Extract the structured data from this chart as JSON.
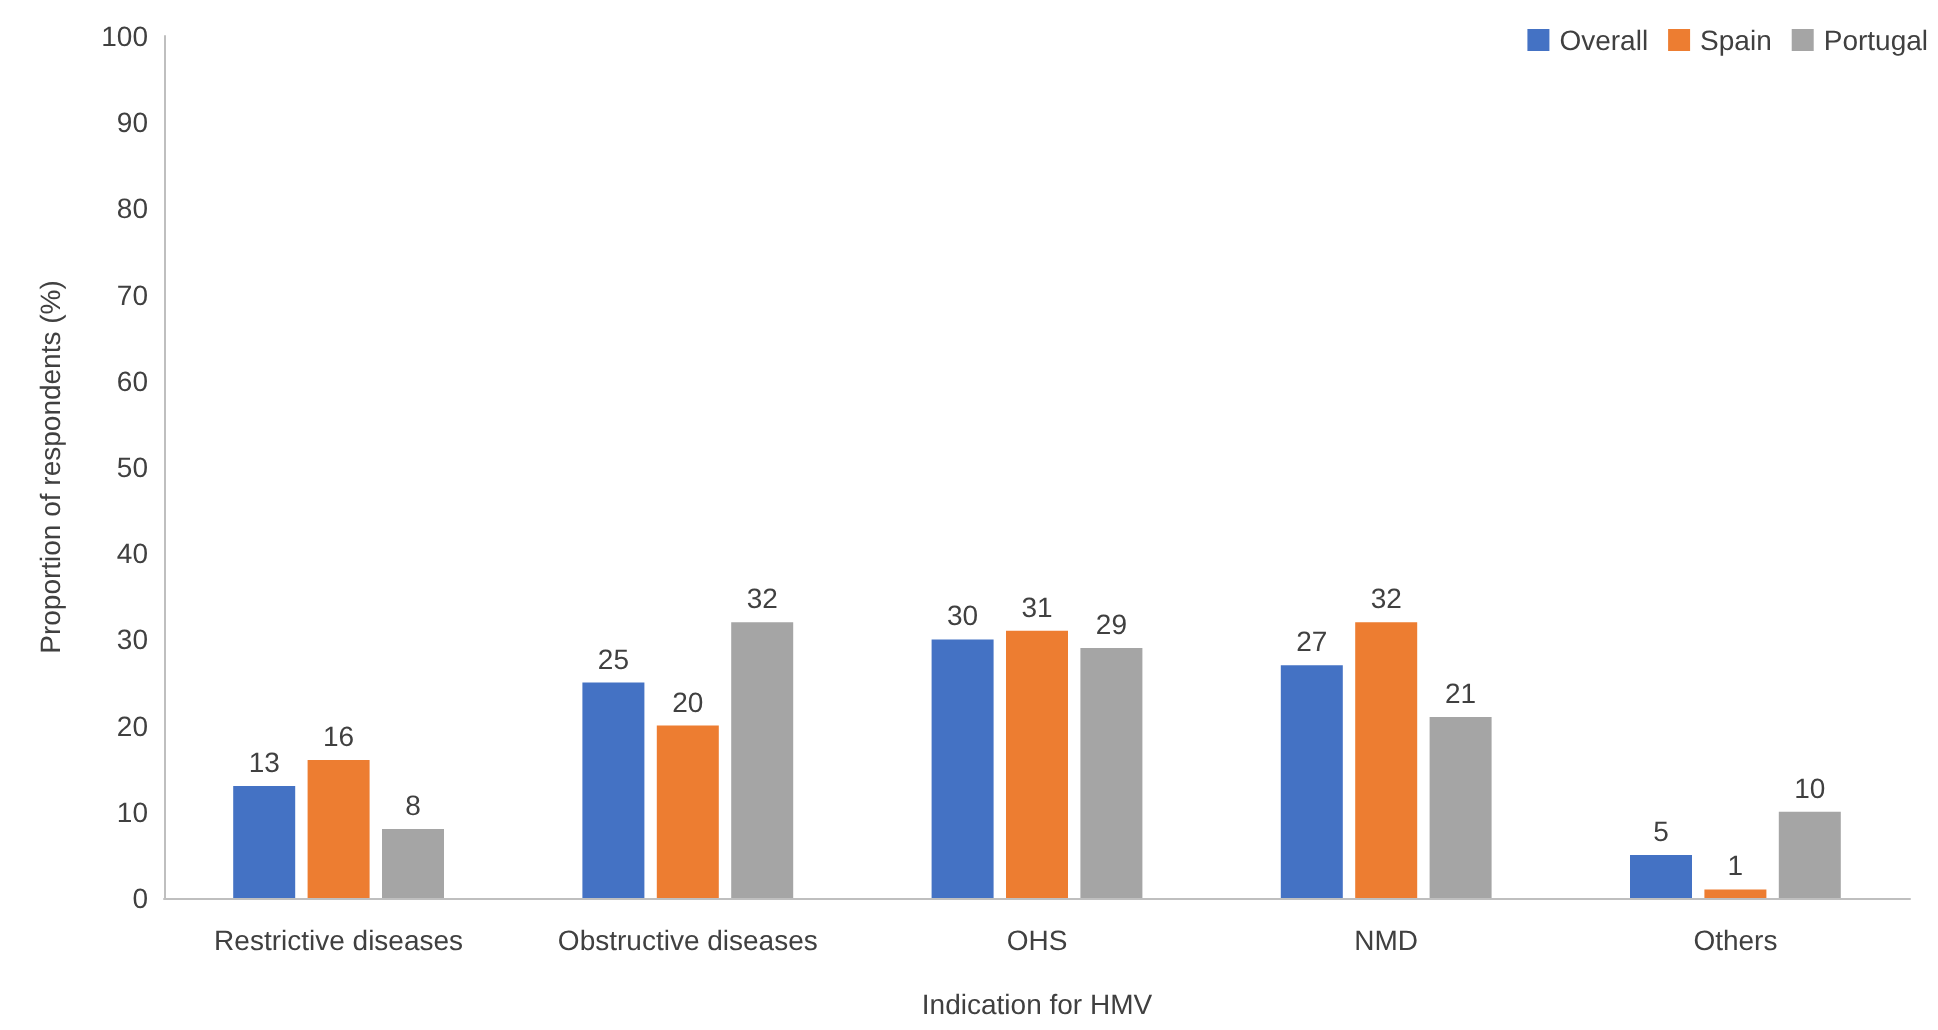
{
  "chart_data": {
    "type": "bar",
    "xlabel": "Indication for HMV",
    "ylabel": "Proportion of respondents (%)",
    "categories": [
      "Restrictive diseases",
      "Obstructive diseases",
      "OHS",
      "NMD",
      "Others"
    ],
    "series": [
      {
        "name": "Overall",
        "color": "#4472c4",
        "values": [
          13,
          25,
          30,
          27,
          5
        ]
      },
      {
        "name": "Spain",
        "color": "#ed7d31",
        "values": [
          16,
          20,
          31,
          32,
          1
        ]
      },
      {
        "name": "Portugal",
        "color": "#a5a5a5",
        "values": [
          8,
          32,
          29,
          21,
          10
        ]
      }
    ],
    "ylim": [
      0,
      100
    ],
    "yticks": [
      0,
      10,
      20,
      30,
      40,
      50,
      60,
      70,
      80,
      90,
      100
    ],
    "grid": false,
    "legend": "top right",
    "data_labels": true
  }
}
